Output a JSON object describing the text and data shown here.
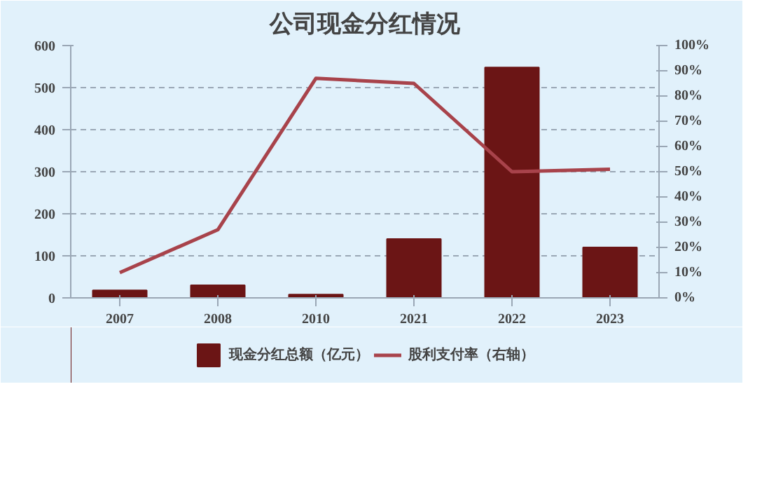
{
  "chart_data": {
    "type": "bar",
    "title": "公司现金分红情况",
    "categories": [
      "2007",
      "2008",
      "2010",
      "2021",
      "2022",
      "2023"
    ],
    "series": [
      {
        "name": "现金分红总额（亿元）",
        "color": "#6b1515",
        "values": [
          18,
          30,
          8,
          140,
          548,
          120
        ]
      },
      {
        "name": "股利支付率（右轴）",
        "type": "line",
        "axis": "y2",
        "color": "#a8434b",
        "values": [
          10,
          27,
          87,
          85,
          50,
          51
        ]
      }
    ],
    "ylim": [
      0,
      600
    ],
    "yticks": [
      0,
      100,
      200,
      300,
      400,
      500,
      600
    ],
    "y2lim": [
      0,
      100
    ],
    "y2ticks": [
      {
        "value": 0,
        "label": "0%"
      },
      {
        "value": 10,
        "label": "10%"
      },
      {
        "value": 20,
        "label": "20%"
      },
      {
        "value": 30,
        "label": "30%"
      },
      {
        "value": 40,
        "label": "40%"
      },
      {
        "value": 50,
        "label": "50%"
      },
      {
        "value": 60,
        "label": "60%"
      },
      {
        "value": 70,
        "label": "70%"
      },
      {
        "value": 80,
        "label": "80%"
      },
      {
        "value": 90,
        "label": "90%"
      },
      {
        "value": 100,
        "label": "100%"
      }
    ],
    "grid": "y",
    "legend": "bottom",
    "marker": "none",
    "line_style": "solid"
  }
}
